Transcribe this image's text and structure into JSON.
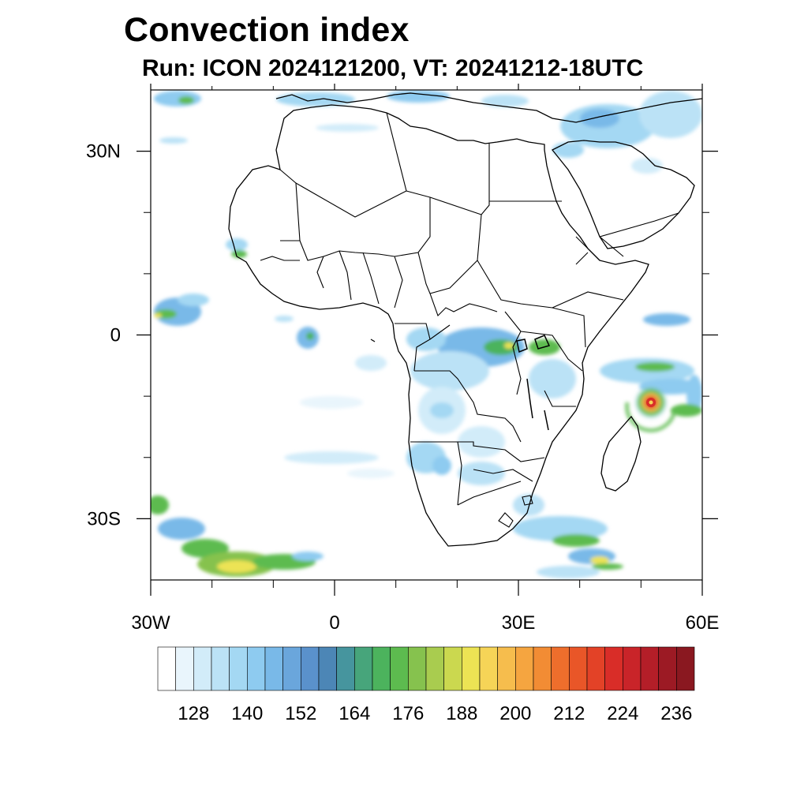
{
  "header": {
    "title": "Convection index",
    "subtitle": "Run: ICON 2024121200,  VT: 20241212-18UTC"
  },
  "map": {
    "lon_range": [
      -30,
      60
    ],
    "lat_range": [
      -40,
      40
    ],
    "y_tick_labels": [
      {
        "lat": 30,
        "label": "30N"
      },
      {
        "lat": 0,
        "label": "0"
      },
      {
        "lat": -30,
        "label": "30S"
      }
    ],
    "x_tick_labels": [
      {
        "lon": -30,
        "label": "30W"
      },
      {
        "lon": 0,
        "label": "0"
      },
      {
        "lon": 30,
        "label": "30E"
      },
      {
        "lon": 60,
        "label": "60E"
      }
    ],
    "minor_lon_ticks": [
      -20,
      -10,
      10,
      20,
      40,
      50
    ],
    "minor_lat_ticks": [
      20,
      10,
      -10,
      -20
    ],
    "features": [
      {
        "name": "tropical cyclone near Madagascar",
        "lon": 52.5,
        "lat": -11.5,
        "max_index": 236
      },
      {
        "name": "southern Atlantic frontal band",
        "lon": -18,
        "lat": -37
      },
      {
        "name": "south-east of Africa frontal band",
        "lon": 42,
        "lat": -36
      },
      {
        "name": "Central Africa / Congo basin convection",
        "lon": 26,
        "lat": -1
      },
      {
        "name": "tropical Atlantic convection",
        "lon": -27,
        "lat": 4
      }
    ]
  },
  "colorbar": {
    "levels": [
      120,
      124,
      128,
      132,
      136,
      140,
      144,
      148,
      152,
      156,
      160,
      164,
      168,
      172,
      176,
      180,
      184,
      188,
      192,
      196,
      200,
      204,
      208,
      212,
      216,
      220,
      224,
      228,
      232,
      236
    ],
    "labels": [
      "128",
      "140",
      "152",
      "164",
      "176",
      "188",
      "200",
      "212",
      "224",
      "236"
    ],
    "colors": [
      "#ffffff",
      "#e9f5fc",
      "#d2ecf9",
      "#bbe2f6",
      "#a4d8f3",
      "#8ecbf0",
      "#79b9e8",
      "#6aa6dc",
      "#5a91cc",
      "#4c86b6",
      "#46959e",
      "#47a57b",
      "#4cb35d",
      "#5dbb4f",
      "#86c24e",
      "#a9cc4f",
      "#cbd84f",
      "#ece354",
      "#f6d457",
      "#f6bd4d",
      "#f5a540",
      "#f28c34",
      "#ee6e2c",
      "#e95628",
      "#e34227",
      "#d92d28",
      "#c92429",
      "#b41e28",
      "#9c1a24",
      "#8a1820"
    ]
  }
}
